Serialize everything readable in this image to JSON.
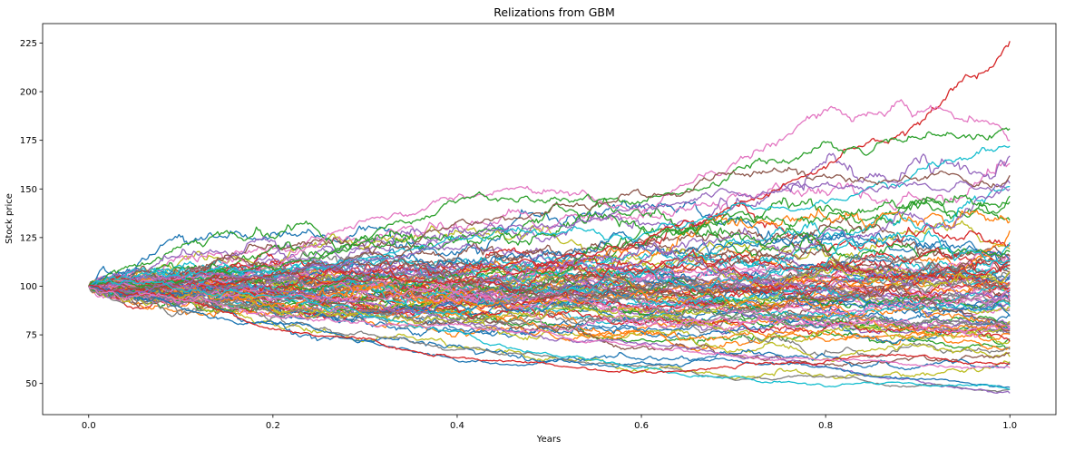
{
  "chart_data": {
    "type": "line",
    "title": "Relizations from GBM",
    "xlabel": "Years",
    "ylabel": "Stock price",
    "xlim": [
      -0.05,
      1.05
    ],
    "ylim": [
      34,
      235
    ],
    "xticks": [
      0.0,
      0.2,
      0.4,
      0.6,
      0.8,
      1.0
    ],
    "xtick_labels": [
      "0.0",
      "0.2",
      "0.4",
      "0.6",
      "0.8",
      "1.0"
    ],
    "yticks": [
      50,
      75,
      100,
      125,
      150,
      175,
      200,
      225
    ],
    "ytick_labels": [
      "50",
      "75",
      "100",
      "125",
      "150",
      "175",
      "200",
      "225"
    ],
    "grid": false,
    "legend": "none",
    "model": {
      "initial_price": 100,
      "num_paths": 100,
      "steps": 500,
      "palette": [
        "#1f77b4",
        "#ff7f0e",
        "#2ca02c",
        "#d62728",
        "#9467bd",
        "#8c564b",
        "#e377c2",
        "#7f7f7f",
        "#bcbd22",
        "#17becf"
      ]
    },
    "series": [
      {
        "color": "#d62728",
        "values_at_xticks": [
          100,
          108,
          115,
          140,
          165,
          226
        ]
      },
      {
        "color": "#e377c2",
        "values_at_xticks": [
          100,
          118,
          158,
          150,
          192,
          175
        ]
      },
      {
        "color": "#2ca02c",
        "values_at_xticks": [
          100,
          110,
          138,
          140,
          168,
          181
        ]
      },
      {
        "color": "#17becf",
        "values_at_xticks": [
          100,
          112,
          125,
          130,
          150,
          172
        ]
      },
      {
        "color": "#8c564b",
        "values_at_xticks": [
          100,
          108,
          130,
          148,
          160,
          157
        ]
      },
      {
        "color": "#9467bd",
        "values_at_xticks": [
          100,
          106,
          120,
          130,
          140,
          150
        ]
      },
      {
        "color": "#7f7f7f",
        "values_at_xticks": [
          100,
          85,
          64,
          60,
          55,
          47
        ]
      },
      {
        "color": "#9467bd",
        "values_at_xticks": [
          100,
          90,
          75,
          62,
          52,
          45
        ]
      },
      {
        "color": "#1f77b4",
        "values_at_xticks": [
          100,
          88,
          65,
          58,
          55,
          48
        ]
      },
      {
        "color": "#17becf",
        "values_at_xticks": [
          100,
          90,
          78,
          60,
          50,
          47
        ]
      },
      {
        "color": "#d62728",
        "values_at_xticks": [
          100,
          85,
          68,
          62,
          65,
          60
        ]
      },
      {
        "color": "#e377c2",
        "values_at_xticks": [
          100,
          92,
          80,
          70,
          65,
          58
        ]
      }
    ]
  }
}
